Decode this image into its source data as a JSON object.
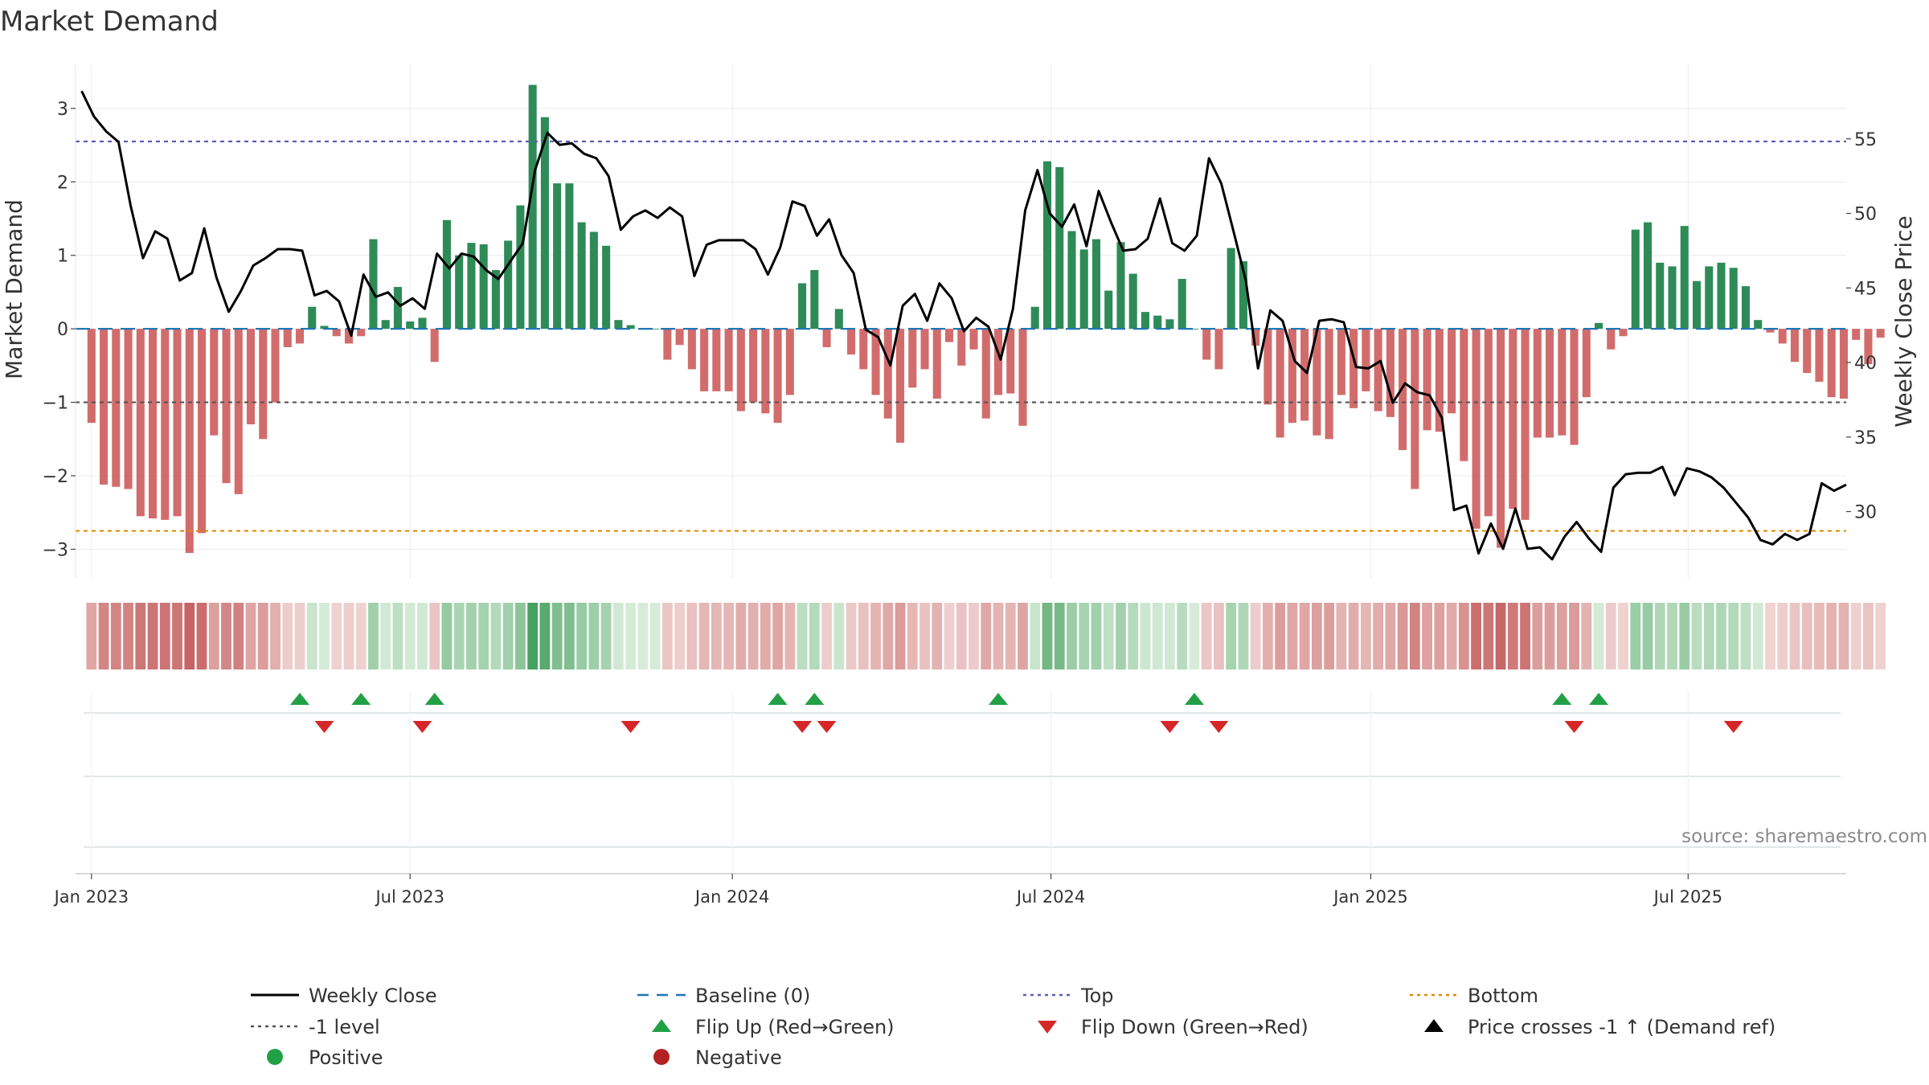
{
  "chart_data": {
    "type": "bar",
    "title": "Market Demand",
    "ylabel": "Market Demand",
    "y2label": "Weekly Close Price",
    "ylim": [
      -3.4,
      3.6
    ],
    "y2lim": [
      25.5,
      60.0
    ],
    "yticks": [
      3,
      2,
      1,
      0,
      -1,
      -2,
      -3
    ],
    "y2ticks": [
      55,
      50,
      45,
      40,
      35,
      30
    ],
    "x_ticks": [
      {
        "label": "Jan 2023",
        "week": 0
      },
      {
        "label": "Jul 2023",
        "week": 26
      },
      {
        "label": "Jan 2024",
        "week": 52.3
      },
      {
        "label": "Jul 2024",
        "week": 78.3
      },
      {
        "label": "Jan 2025",
        "week": 104.4
      },
      {
        "label": "Jul 2025",
        "week": 130.3
      }
    ],
    "week_range": [
      -1.3,
      143.2
    ],
    "levels": {
      "top": 2.55,
      "minus_one": -1.0,
      "bottom": -2.75,
      "baseline": 0
    },
    "demand": [
      -1.28,
      -2.12,
      -2.15,
      -2.18,
      -2.55,
      -2.58,
      -2.6,
      -2.55,
      -3.05,
      -2.78,
      -1.45,
      -2.1,
      -2.25,
      -1.3,
      -1.5,
      -1.0,
      -0.25,
      -0.2,
      0.3,
      0.04,
      -0.1,
      -0.2,
      -0.1,
      1.22,
      0.12,
      0.57,
      0.1,
      0.15,
      -0.45,
      1.48,
      1.0,
      1.17,
      1.15,
      0.8,
      1.2,
      1.68,
      3.32,
      2.88,
      1.98,
      1.98,
      1.45,
      1.32,
      1.13,
      0.12,
      0.05,
      0.0,
      0.0,
      -0.42,
      -0.22,
      -0.55,
      -0.85,
      -0.85,
      -0.85,
      -1.12,
      -1.0,
      -1.15,
      -1.28,
      -0.9,
      0.62,
      0.8,
      -0.25,
      0.27,
      -0.35,
      -0.55,
      -0.9,
      -1.22,
      -1.55,
      -0.8,
      -0.55,
      -0.95,
      -0.18,
      -0.5,
      -0.28,
      -1.22,
      -0.9,
      -0.88,
      -1.32,
      0.3,
      2.28,
      2.2,
      1.33,
      1.08,
      1.22,
      0.52,
      1.18,
      0.75,
      0.23,
      0.18,
      0.13,
      0.68,
      0.0,
      -0.42,
      -0.55,
      1.1,
      0.92,
      -0.23,
      -1.03,
      -1.48,
      -1.28,
      -1.25,
      -1.45,
      -1.5,
      -0.9,
      -1.08,
      -0.85,
      -1.12,
      -1.2,
      -1.65,
      -2.18,
      -1.38,
      -1.4,
      -1.15,
      -1.8,
      -2.72,
      -2.55,
      -2.98,
      -2.45,
      -2.6,
      -1.48,
      -1.48,
      -1.45,
      -1.58,
      -0.93,
      0.08,
      -0.28,
      -0.1,
      1.35,
      1.45,
      0.9,
      0.85,
      1.4,
      0.65,
      0.85,
      0.9,
      0.83,
      0.58,
      0.12,
      -0.05,
      -0.2,
      -0.45,
      -0.6,
      -0.72,
      -0.93,
      -0.95,
      -0.15,
      -0.48,
      -0.12
    ],
    "price": {
      "name": "Weekly Close",
      "points": [
        [
          -0.8,
          58.2
        ],
        [
          0.2,
          56.5
        ],
        [
          1.2,
          55.5
        ],
        [
          2.2,
          54.8
        ],
        [
          3.2,
          50.5
        ],
        [
          4.2,
          47.0
        ],
        [
          5.2,
          48.8
        ],
        [
          6.2,
          48.3
        ],
        [
          7.2,
          45.5
        ],
        [
          8.2,
          46.0
        ],
        [
          9.2,
          49.0
        ],
        [
          10.2,
          45.7
        ],
        [
          11.2,
          43.4
        ],
        [
          12.2,
          44.8
        ],
        [
          13.2,
          46.5
        ],
        [
          14.2,
          47.0
        ],
        [
          15.2,
          47.6
        ],
        [
          16.2,
          47.6
        ],
        [
          17.2,
          47.5
        ],
        [
          18.2,
          44.5
        ],
        [
          19.2,
          44.8
        ],
        [
          20.2,
          44.1
        ],
        [
          21.2,
          41.8
        ],
        [
          22.2,
          45.9
        ],
        [
          23.2,
          44.4
        ],
        [
          24.2,
          44.7
        ],
        [
          25.2,
          43.8
        ],
        [
          26.2,
          44.3
        ],
        [
          27.2,
          43.6
        ],
        [
          28.2,
          47.3
        ],
        [
          29.2,
          46.3
        ],
        [
          30.2,
          47.3
        ],
        [
          31.2,
          47.1
        ],
        [
          32.2,
          46.2
        ],
        [
          33.2,
          45.6
        ],
        [
          34.2,
          46.8
        ],
        [
          35.2,
          48.0
        ],
        [
          36.2,
          52.9
        ],
        [
          37.2,
          55.4
        ],
        [
          38.2,
          54.6
        ],
        [
          39.2,
          54.7
        ],
        [
          40.2,
          54.0
        ],
        [
          41.2,
          53.7
        ],
        [
          42.2,
          52.5
        ],
        [
          43.2,
          48.9
        ],
        [
          44.2,
          49.8
        ],
        [
          45.2,
          50.2
        ],
        [
          46.2,
          49.7
        ],
        [
          47.2,
          50.4
        ],
        [
          48.2,
          49.8
        ],
        [
          49.2,
          45.8
        ],
        [
          50.2,
          47.9
        ],
        [
          51.2,
          48.2
        ],
        [
          52.2,
          48.2
        ],
        [
          53.2,
          48.2
        ],
        [
          54.2,
          47.6
        ],
        [
          55.2,
          45.9
        ],
        [
          56.2,
          47.7
        ],
        [
          57.2,
          50.8
        ],
        [
          58.2,
          50.5
        ],
        [
          59.2,
          48.5
        ],
        [
          60.2,
          49.6
        ],
        [
          61.2,
          47.2
        ],
        [
          62.2,
          46.0
        ],
        [
          63.2,
          42.2
        ],
        [
          64.2,
          41.7
        ],
        [
          65.2,
          39.8
        ],
        [
          66.2,
          43.8
        ],
        [
          67.2,
          44.6
        ],
        [
          68.2,
          42.8
        ],
        [
          69.2,
          45.3
        ],
        [
          70.2,
          44.3
        ],
        [
          71.2,
          42.1
        ],
        [
          72.2,
          43.0
        ],
        [
          73.2,
          42.4
        ],
        [
          74.2,
          40.2
        ],
        [
          75.2,
          43.6
        ],
        [
          76.2,
          50.2
        ],
        [
          77.2,
          52.9
        ],
        [
          78.2,
          50.0
        ],
        [
          79.2,
          49.1
        ],
        [
          80.2,
          50.6
        ],
        [
          81.2,
          47.8
        ],
        [
          82.2,
          51.5
        ],
        [
          83.2,
          49.4
        ],
        [
          84.2,
          47.5
        ],
        [
          85.2,
          47.6
        ],
        [
          86.2,
          48.3
        ],
        [
          87.2,
          51.0
        ],
        [
          88.2,
          48.0
        ],
        [
          89.2,
          47.5
        ],
        [
          90.2,
          48.5
        ],
        [
          91.2,
          53.7
        ],
        [
          92.2,
          52.0
        ],
        [
          93.2,
          48.8
        ],
        [
          94.2,
          45.5
        ],
        [
          95.2,
          39.6
        ],
        [
          96.2,
          43.5
        ],
        [
          97.2,
          42.8
        ],
        [
          98.2,
          40.1
        ],
        [
          99.2,
          39.3
        ],
        [
          100.2,
          42.8
        ],
        [
          101.2,
          42.9
        ],
        [
          102.2,
          42.7
        ],
        [
          103.2,
          39.7
        ],
        [
          104.2,
          39.6
        ],
        [
          105.2,
          40.1
        ],
        [
          106.2,
          37.3
        ],
        [
          107.2,
          38.6
        ],
        [
          108.2,
          38.0
        ],
        [
          109.2,
          37.8
        ],
        [
          110.2,
          36.3
        ],
        [
          111.2,
          30.1
        ],
        [
          112.2,
          30.4
        ],
        [
          113.2,
          27.2
        ],
        [
          114.2,
          29.2
        ],
        [
          115.2,
          27.5
        ],
        [
          116.2,
          30.2
        ],
        [
          117.2,
          27.5
        ],
        [
          118.2,
          27.6
        ],
        [
          119.2,
          26.8
        ],
        [
          120.2,
          28.3
        ],
        [
          121.2,
          29.3
        ],
        [
          122.2,
          28.2
        ],
        [
          123.2,
          27.3
        ],
        [
          124.2,
          31.6
        ],
        [
          125.2,
          32.5
        ],
        [
          126.2,
          32.6
        ],
        [
          127.2,
          32.6
        ],
        [
          128.2,
          33.0
        ],
        [
          129.2,
          31.1
        ],
        [
          130.2,
          32.9
        ],
        [
          131.2,
          32.7
        ],
        [
          132.2,
          32.3
        ],
        [
          133.2,
          31.6
        ],
        [
          134.2,
          30.6
        ],
        [
          135.2,
          29.6
        ],
        [
          136.2,
          28.1
        ],
        [
          137.2,
          27.8
        ],
        [
          138.2,
          28.5
        ],
        [
          139.2,
          28.1
        ],
        [
          140.2,
          28.5
        ],
        [
          141.2,
          31.9
        ],
        [
          142.2,
          31.4
        ],
        [
          143.2,
          31.8
        ]
      ]
    },
    "flip_up_weeks": [
      17,
      22,
      28,
      56,
      59,
      74,
      90,
      120,
      123
    ],
    "flip_down_weeks": [
      19,
      27,
      44,
      58,
      60,
      88,
      92,
      121,
      134
    ],
    "legend": {
      "placement": "bottom",
      "entries": [
        {
          "label": "Weekly Close",
          "marker": "solid-line",
          "color": "#000000"
        },
        {
          "label": "Baseline (0)",
          "marker": "dashed-line",
          "color": "#1f77b4"
        },
        {
          "label": "Top",
          "marker": "dotted-line",
          "color": "#5b5fb5"
        },
        {
          "label": "Bottom",
          "marker": "dotted-line",
          "color": "#e08c00"
        },
        {
          "label": "-1 level",
          "marker": "dotted-line",
          "color": "#555555"
        },
        {
          "label": "Flip Up (Red→Green)",
          "marker": "triangle-up",
          "color": "#22a046"
        },
        {
          "label": "Flip Down (Green→Red)",
          "marker": "triangle-down",
          "color": "#d62728"
        },
        {
          "label": "Price crosses -1 ↑ (Demand ref)",
          "marker": "triangle-up",
          "color": "#000000"
        },
        {
          "label": "Positive",
          "marker": "circle",
          "color": "#22a046"
        },
        {
          "label": "Negative",
          "marker": "circle",
          "color": "#b22222"
        }
      ]
    },
    "colors": {
      "positive": "#2e8b57",
      "negative": "#cd5c5c",
      "price_line": "#000000",
      "top_line": "#5b5fb5",
      "bottom_line": "#e08c00",
      "minus_one_line": "#555555",
      "baseline": "#1f77b4"
    }
  },
  "source_text": "source: sharemaestro.com"
}
